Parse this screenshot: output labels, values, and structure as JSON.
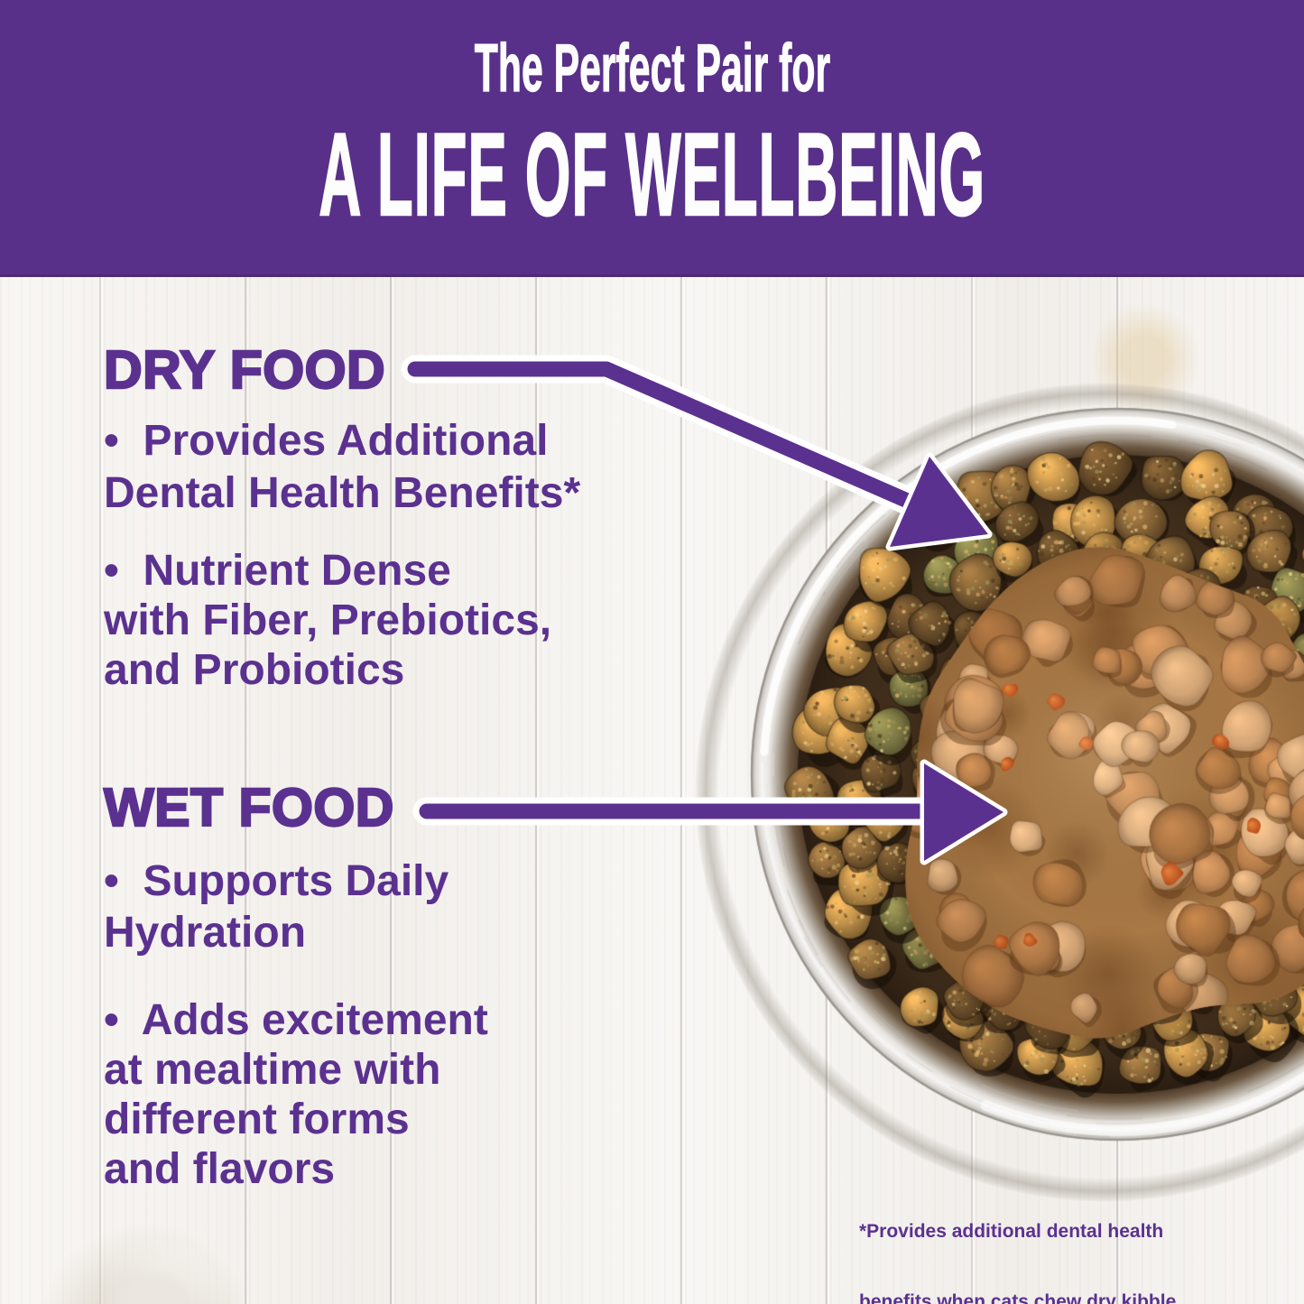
{
  "header": {
    "line1": "The Perfect Pair for",
    "line2": "A LIFE OF WELLBEING"
  },
  "dry_food": {
    "title": "DRY FOOD",
    "bullets": [
      [
        "•  Provides Additional",
        "Dental Health Benefits*"
      ],
      [
        "•  Nutrient Dense",
        "with Fiber, Prebiotics,",
        "and Probiotics"
      ]
    ]
  },
  "wet_food": {
    "title": "WET FOOD",
    "bullets": [
      [
        "•  Supports Daily",
        "Hydration"
      ],
      [
        "•  Adds excitement",
        "at mealtime with",
        "different forms",
        "and flavors"
      ]
    ]
  },
  "footnote": {
    "line1": "*Provides additional dental health",
    "line2": "benefits when cats chew dry kibble"
  },
  "colors": {
    "brand_purple": "#583089",
    "text_purple": "#5b3190",
    "arrow_purple": "#5b3190",
    "arrow_outline": "#ffffff",
    "header_text": "#ffffff"
  }
}
